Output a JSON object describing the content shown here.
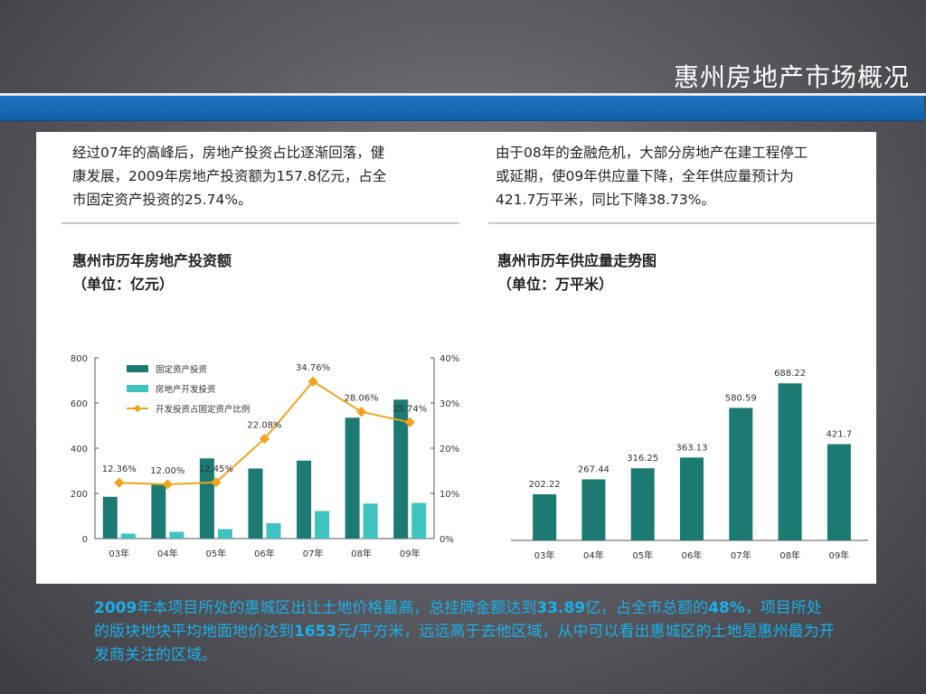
{
  "slide": {
    "title": "惠州房地产市场概况",
    "left_paragraph_lines": [
      "经过07年的高峰后，房地产投资占比逐渐回落，健",
      "康发展，2009年房地产投资额为157.8亿元，占全",
      "市固定资产投资的25.74%。"
    ],
    "right_paragraph_lines": [
      "由于08年的金融危机，大部分房地产在建工程停工",
      "或延期，使09年供应量下降，全年供应量预计为",
      "421.7万平米，同比下降38.73%。"
    ],
    "caption": [
      {
        "text": "2009",
        "bold": true
      },
      {
        "text": "年本项目所处的惠城区出让土地价格最高，总挂牌金额达到",
        "bold": false
      },
      {
        "text": "33.89",
        "bold": true
      },
      {
        "text": "亿，占全市总额的",
        "bold": false
      },
      {
        "text": "48%",
        "bold": true
      },
      {
        "text": "，项目所处的版块地块平均地面地价达到",
        "bold": false
      },
      {
        "text": "1653",
        "bold": true
      },
      {
        "text": "元",
        "bold": false
      },
      {
        "text": "/",
        "bold": true
      },
      {
        "text": "平方米，远远高于去他区域，从中可以看出惠城区的土地是惠州最为开发商关注的区域。",
        "bold": false
      }
    ]
  },
  "chart_data": [
    {
      "type": "bar",
      "title": "惠州市历年房地产投资额",
      "subtitle": "（单位：亿元）",
      "categories": [
        "03年",
        "04年",
        "05年",
        "06年",
        "07年",
        "08年",
        "09年"
      ],
      "series": [
        {
          "name": "固定资产投资",
          "type": "bar",
          "axis": "left",
          "color": "#1d7a72",
          "values": [
            185,
            240,
            355,
            310,
            345,
            535,
            615
          ]
        },
        {
          "name": "房地产开发投资",
          "type": "bar",
          "axis": "left",
          "color": "#3ec3c0",
          "values": [
            22,
            30,
            42,
            68,
            122,
            155,
            158
          ]
        },
        {
          "name": "开发投资占固定资产比例",
          "type": "line",
          "axis": "right",
          "color": "#f0a31e",
          "values": [
            12.36,
            12.0,
            12.45,
            22.08,
            34.76,
            28.06,
            25.74
          ],
          "labels": [
            "12.36%",
            "12.00%",
            "12.45%",
            "22.08%",
            "34.76%",
            "28.06%",
            "25.74%"
          ]
        }
      ],
      "ylim": [
        0,
        800
      ],
      "yticks": [
        "0",
        "200",
        "400",
        "600",
        "800"
      ],
      "y2lim": [
        0,
        40
      ],
      "y2ticks": [
        "0%",
        "10%",
        "20%",
        "30%",
        "40%"
      ],
      "legend": "top-left",
      "grid": false
    },
    {
      "type": "bar",
      "title": "惠州市历年供应量走势图",
      "subtitle": "（单位：万平米）",
      "categories": [
        "03年",
        "04年",
        "05年",
        "06年",
        "07年",
        "08年",
        "09年"
      ],
      "series": [
        {
          "color": "#1d7a72",
          "values": [
            202.22,
            267.44,
            316.25,
            363.13,
            580.59,
            688.22,
            421.7
          ],
          "labels": [
            "202.22",
            "267.44",
            "316.25",
            "363.13",
            "580.59",
            "688.22",
            "421.7"
          ]
        }
      ],
      "ylim": [
        0,
        800
      ],
      "grid": false
    }
  ]
}
